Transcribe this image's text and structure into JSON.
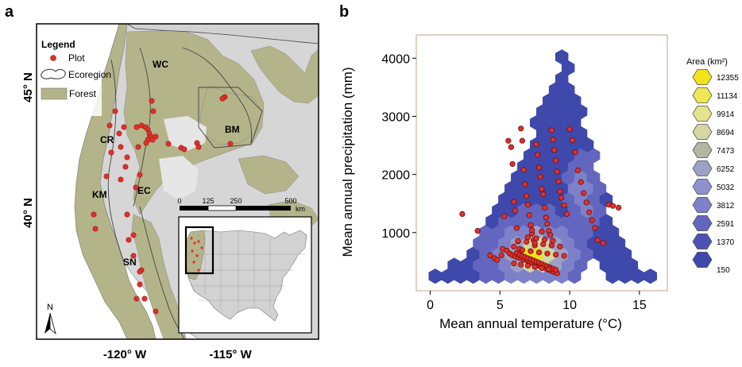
{
  "panel_a": {
    "label": "a",
    "legend": {
      "title": "Legend",
      "items": [
        "Plot",
        "Ecoregion",
        "Forest"
      ]
    },
    "lat_labels": [
      "45° N",
      "40° N"
    ],
    "lon_labels": [
      "-120° W",
      "-115° W"
    ],
    "region_labels": [
      "WC",
      "CR",
      "BM",
      "KM",
      "EC",
      "SN"
    ],
    "scale_bar": {
      "ticks": [
        "0",
        "125",
        "250",
        "500"
      ],
      "unit": "km"
    },
    "north_arrow": "N",
    "colors": {
      "forest": "#b4b48a",
      "nonforest": "#d6d6d6",
      "water": "#ffffff",
      "plot": "#e0302b"
    }
  },
  "panel_b": {
    "label": "b",
    "colorbar": {
      "title": "Area (km²)",
      "values": [
        "12355",
        "11134",
        "9914",
        "8694",
        "7473",
        "6252",
        "5032",
        "3812",
        "2591",
        "1370",
        "150"
      ],
      "colors": [
        "#f2e21a",
        "#eee854",
        "#e4e48c",
        "#d4d6a4",
        "#b2b6a2",
        "#9ea0c6",
        "#8f91cf",
        "#7d81c9",
        "#6266be",
        "#4c52b4",
        "#3f48ab"
      ]
    }
  },
  "chart_data": {
    "type": "scatter",
    "xlabel": "Mean annual temperature (°C)",
    "ylabel": "Mean annual precipitation (mm)",
    "xlim": [
      -1,
      17
    ],
    "ylim": [
      0,
      4400
    ],
    "xticks": [
      0,
      5,
      10,
      15
    ],
    "yticks": [
      1000,
      2000,
      3000,
      4000
    ],
    "background": "hexbin area density",
    "series": [
      {
        "points": [
          [
            2.3,
            1320
          ],
          [
            3.4,
            1030
          ],
          [
            4.3,
            610
          ],
          [
            4.6,
            560
          ],
          [
            4.8,
            530
          ],
          [
            5.1,
            610
          ],
          [
            5.3,
            1280
          ],
          [
            5.6,
            2580
          ],
          [
            5.8,
            2470
          ],
          [
            5.9,
            2180
          ],
          [
            6.0,
            1530
          ],
          [
            6.1,
            1380
          ],
          [
            6.2,
            1080
          ],
          [
            6.3,
            850
          ],
          [
            6.4,
            720
          ],
          [
            6.5,
            2790
          ],
          [
            6.6,
            2580
          ],
          [
            6.7,
            2080
          ],
          [
            6.8,
            1830
          ],
          [
            6.9,
            1630
          ],
          [
            7.0,
            1480
          ],
          [
            7.1,
            1300
          ],
          [
            7.2,
            1130
          ],
          [
            7.3,
            980
          ],
          [
            7.4,
            870
          ],
          [
            7.5,
            780
          ],
          [
            7.6,
            2520
          ],
          [
            7.7,
            2340
          ],
          [
            7.8,
            2120
          ],
          [
            7.9,
            1960
          ],
          [
            8.0,
            1750
          ],
          [
            8.1,
            1660
          ],
          [
            8.2,
            1430
          ],
          [
            8.3,
            1260
          ],
          [
            8.4,
            1150
          ],
          [
            8.5,
            1030
          ],
          [
            8.6,
            960
          ],
          [
            8.7,
            2760
          ],
          [
            8.8,
            2600
          ],
          [
            8.9,
            2420
          ],
          [
            9.0,
            2240
          ],
          [
            9.1,
            2050
          ],
          [
            9.2,
            1880
          ],
          [
            9.3,
            1710
          ],
          [
            9.4,
            1600
          ],
          [
            9.6,
            1470
          ],
          [
            9.8,
            1320
          ],
          [
            10.0,
            2780
          ],
          [
            10.2,
            2590
          ],
          [
            10.4,
            2380
          ],
          [
            10.6,
            2070
          ],
          [
            10.8,
            1870
          ],
          [
            11.0,
            1680
          ],
          [
            11.2,
            1520
          ],
          [
            11.4,
            1350
          ],
          [
            11.6,
            1210
          ],
          [
            11.8,
            1080
          ],
          [
            12.0,
            870
          ],
          [
            12.4,
            820
          ],
          [
            12.8,
            1480
          ],
          [
            13.1,
            1460
          ],
          [
            13.5,
            1430
          ],
          [
            5.2,
            720
          ],
          [
            5.5,
            690
          ],
          [
            5.7,
            640
          ],
          [
            5.9,
            610
          ],
          [
            6.1,
            590
          ],
          [
            6.3,
            570
          ],
          [
            6.5,
            560
          ],
          [
            6.7,
            540
          ],
          [
            6.9,
            520
          ],
          [
            7.1,
            500
          ],
          [
            7.3,
            480
          ],
          [
            7.5,
            460
          ],
          [
            7.7,
            440
          ],
          [
            7.9,
            420
          ],
          [
            8.1,
            400
          ],
          [
            8.3,
            380
          ],
          [
            8.5,
            360
          ],
          [
            8.7,
            340
          ],
          [
            8.9,
            320
          ],
          [
            9.1,
            300
          ],
          [
            6.2,
            650
          ],
          [
            6.4,
            620
          ],
          [
            6.6,
            600
          ],
          [
            6.8,
            580
          ],
          [
            7.0,
            560
          ],
          [
            7.2,
            540
          ],
          [
            7.4,
            520
          ],
          [
            7.6,
            500
          ],
          [
            7.8,
            480
          ],
          [
            8.0,
            460
          ],
          [
            8.2,
            440
          ],
          [
            8.4,
            420
          ],
          [
            8.6,
            400
          ],
          [
            8.8,
            380
          ],
          [
            9.0,
            360
          ],
          [
            6.0,
            760
          ],
          [
            6.6,
            700
          ],
          [
            7.2,
            680
          ],
          [
            7.8,
            660
          ],
          [
            8.4,
            640
          ],
          [
            9.0,
            620
          ],
          [
            9.6,
            600
          ],
          [
            6.3,
            860
          ],
          [
            6.9,
            840
          ],
          [
            7.5,
            820
          ],
          [
            8.1,
            800
          ],
          [
            8.7,
            780
          ],
          [
            9.3,
            760
          ],
          [
            7.0,
            920
          ],
          [
            7.6,
            900
          ],
          [
            8.2,
            880
          ],
          [
            8.8,
            860
          ],
          [
            7.3,
            1040
          ],
          [
            8.0,
            1020
          ],
          [
            6.0,
            470
          ],
          [
            6.5,
            450
          ],
          [
            7.0,
            430
          ],
          [
            7.5,
            410
          ],
          [
            8.0,
            390
          ],
          [
            8.5,
            370
          ]
        ]
      }
    ]
  }
}
